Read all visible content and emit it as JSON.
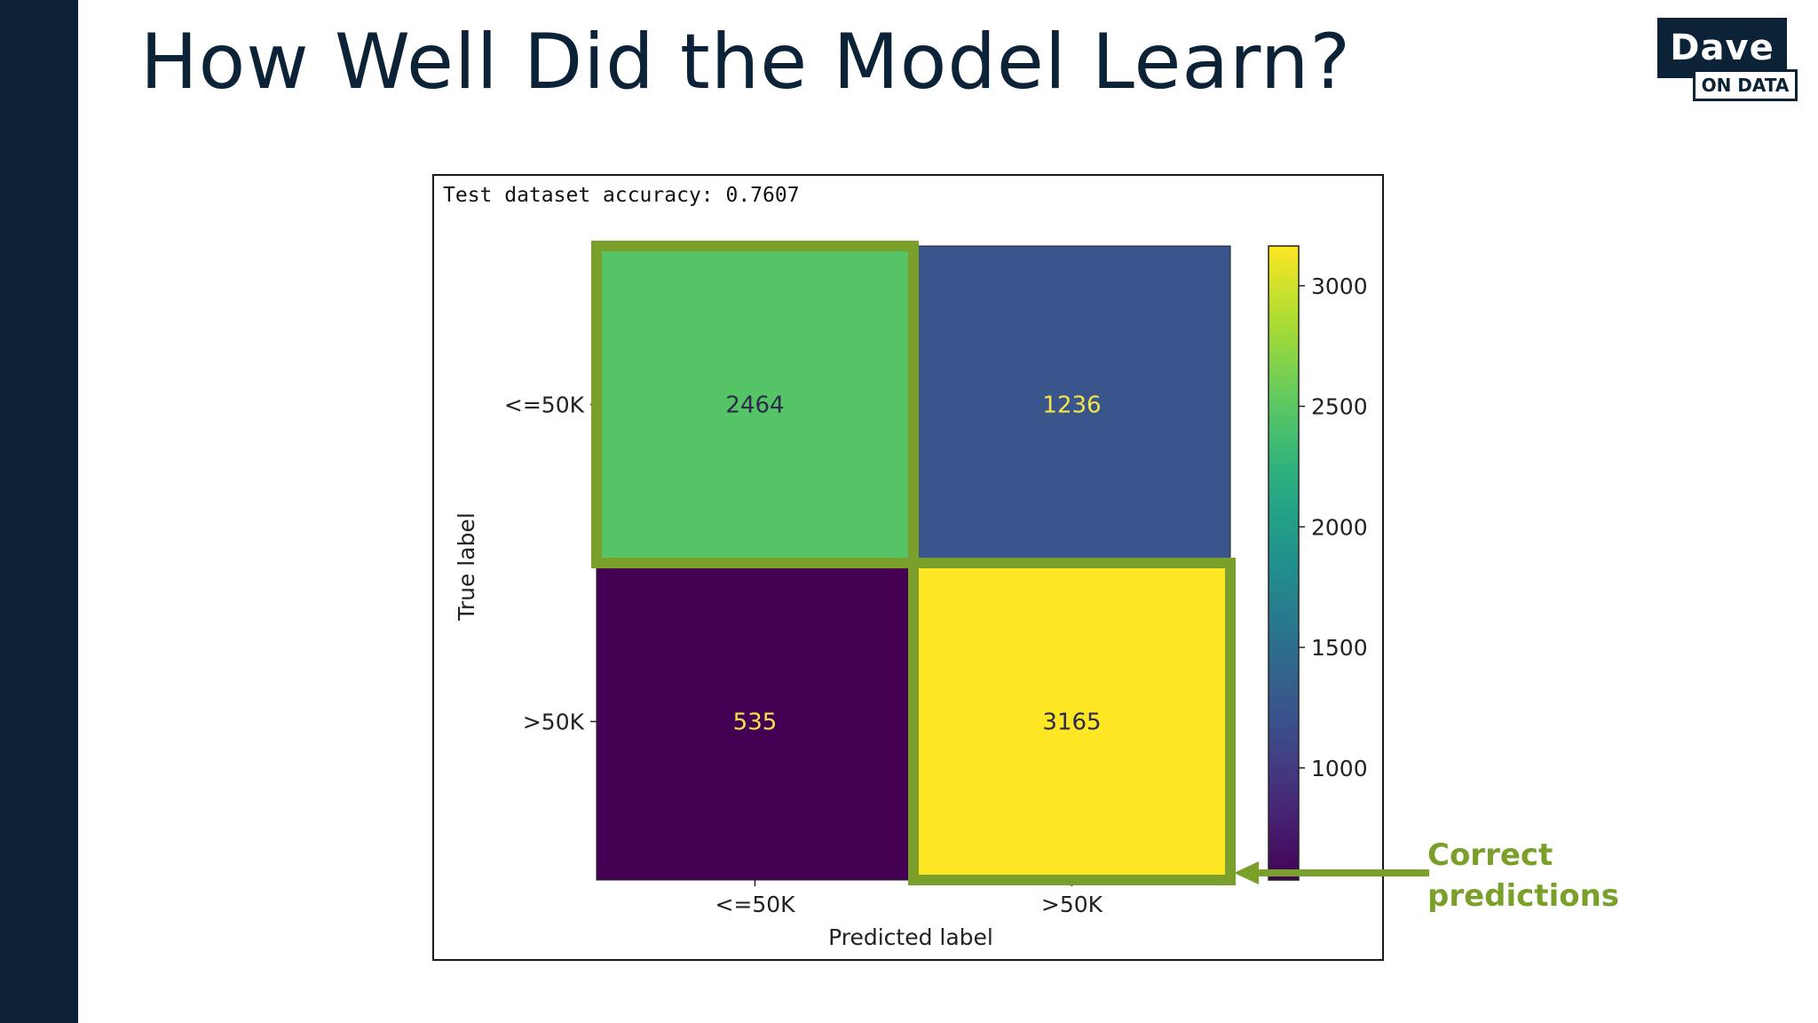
{
  "slide": {
    "title": "How Well Did the Model Learn?"
  },
  "logo": {
    "top_text": "Dave",
    "bottom_text": "ON DATA"
  },
  "callout": {
    "line1": "Correct",
    "line2": "predictions",
    "color": "#7aa02b"
  },
  "chart_data": {
    "type": "heatmap",
    "title": "Test dataset accuracy: 0.7607",
    "xlabel": "Predicted label",
    "ylabel": "True label",
    "x_categories": [
      "<=50K",
      ">50K"
    ],
    "y_categories": [
      "<=50K",
      ">50K"
    ],
    "values": [
      [
        2464,
        1236
      ],
      [
        535,
        3165
      ]
    ],
    "colormap": "viridis",
    "colorbar": {
      "ticks": [
        1000,
        1500,
        2000,
        2500,
        3000
      ],
      "range": [
        535,
        3165
      ]
    },
    "highlighted_cells": [
      [
        0,
        0
      ],
      [
        1,
        1
      ]
    ],
    "highlight_color": "#7aa02b"
  }
}
